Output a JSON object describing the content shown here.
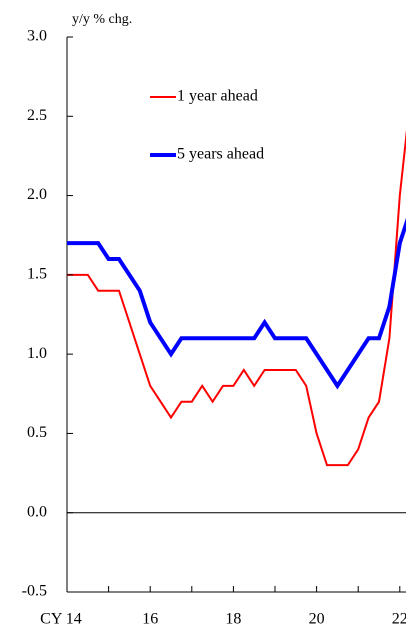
{
  "chart_data": {
    "type": "line",
    "y_label": "y/y % chg.",
    "x": [
      14,
      14.25,
      14.5,
      14.75,
      15,
      15.25,
      15.5,
      15.75,
      16,
      16.25,
      16.5,
      16.75,
      17,
      17.25,
      17.5,
      17.75,
      18,
      18.25,
      18.5,
      18.75,
      19,
      19.25,
      19.5,
      19.75,
      20,
      20.25,
      20.5,
      20.75,
      21,
      21.25,
      21.5,
      21.75,
      22,
      22.25
    ],
    "series": [
      {
        "name": "1 year ahead",
        "color": "#ff0000",
        "values": [
          1.5,
          1.5,
          1.5,
          1.4,
          1.4,
          1.4,
          1.2,
          1.0,
          0.8,
          0.7,
          0.6,
          0.7,
          0.7,
          0.8,
          0.7,
          0.8,
          0.8,
          0.9,
          0.8,
          0.9,
          0.9,
          0.9,
          0.9,
          0.8,
          0.5,
          0.3,
          0.3,
          0.3,
          0.4,
          0.6,
          0.7,
          1.1,
          2.0,
          2.6
        ]
      },
      {
        "name": "5 years ahead",
        "color": "#0000ff",
        "values": [
          1.7,
          1.7,
          1.7,
          1.7,
          1.6,
          1.6,
          1.5,
          1.4,
          1.2,
          1.1,
          1.0,
          1.1,
          1.1,
          1.1,
          1.1,
          1.1,
          1.1,
          1.1,
          1.1,
          1.2,
          1.1,
          1.1,
          1.1,
          1.1,
          1.0,
          0.9,
          0.8,
          0.9,
          1.0,
          1.1,
          1.1,
          1.3,
          1.7,
          1.9
        ]
      }
    ],
    "xlim": [
      14,
      22.17
    ],
    "xticks": [
      {
        "value": 14,
        "label": "CY 14"
      },
      16,
      18,
      20,
      22
    ],
    "xminorticks": [
      15,
      17,
      19,
      21
    ],
    "ylim": [
      -0.5,
      3.0
    ],
    "yticks": [
      {
        "value": -0.5,
        "label": "-0.5"
      },
      {
        "value": 0,
        "label": "0.0"
      },
      {
        "value": 0.5,
        "label": "0.5"
      },
      {
        "value": 1.0,
        "label": "1.0"
      },
      {
        "value": 1.5,
        "label": "1.5"
      },
      {
        "value": 2.0,
        "label": "2.0"
      },
      {
        "value": 2.5,
        "label": "2.5"
      },
      {
        "value": 3.0,
        "label": "3.0"
      }
    ],
    "zero_line": 0
  }
}
